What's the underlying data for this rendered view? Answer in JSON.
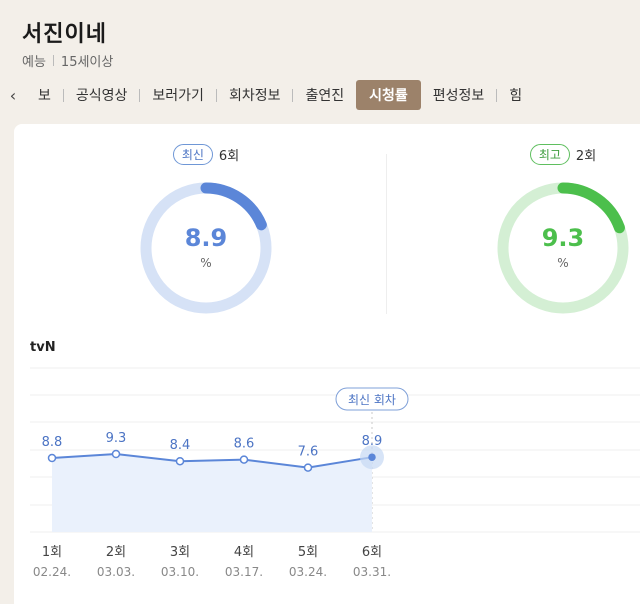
{
  "show": {
    "title": "서진이네",
    "genre": "예능",
    "rating": "15세이상"
  },
  "tabs": [
    {
      "label": "보",
      "active": false
    },
    {
      "label": "공식영상",
      "active": false
    },
    {
      "label": "보러가기",
      "active": false
    },
    {
      "label": "회차정보",
      "active": false
    },
    {
      "label": "출연진",
      "active": false
    },
    {
      "label": "시청률",
      "active": true
    },
    {
      "label": "편성정보",
      "active": false
    },
    {
      "label": "힘",
      "active": false
    }
  ],
  "latest": {
    "badge": "최신",
    "episode": "6회",
    "value": "8.9",
    "unit": "%",
    "color": "#5b86d8",
    "track": "#d6e2f6",
    "fraction": 0.089
  },
  "highest": {
    "badge": "최고",
    "episode": "2회",
    "value": "9.3",
    "unit": "%",
    "color": "#4cbf4c",
    "track": "#d4efd4",
    "fraction": 0.093
  },
  "network": "tvN",
  "chart_data": {
    "type": "line",
    "categories": [
      "1회",
      "2회",
      "3회",
      "4회",
      "5회",
      "6회"
    ],
    "dates": [
      "02.24.",
      "03.03.",
      "03.10.",
      "03.17.",
      "03.24.",
      "03.31."
    ],
    "series": [
      {
        "values": [
          8.8,
          9.3,
          8.4,
          8.6,
          7.6,
          8.9
        ]
      }
    ],
    "annotation": "최신 회차",
    "line_color": "#5b86d8",
    "fill_color": "#eaf1fc"
  }
}
